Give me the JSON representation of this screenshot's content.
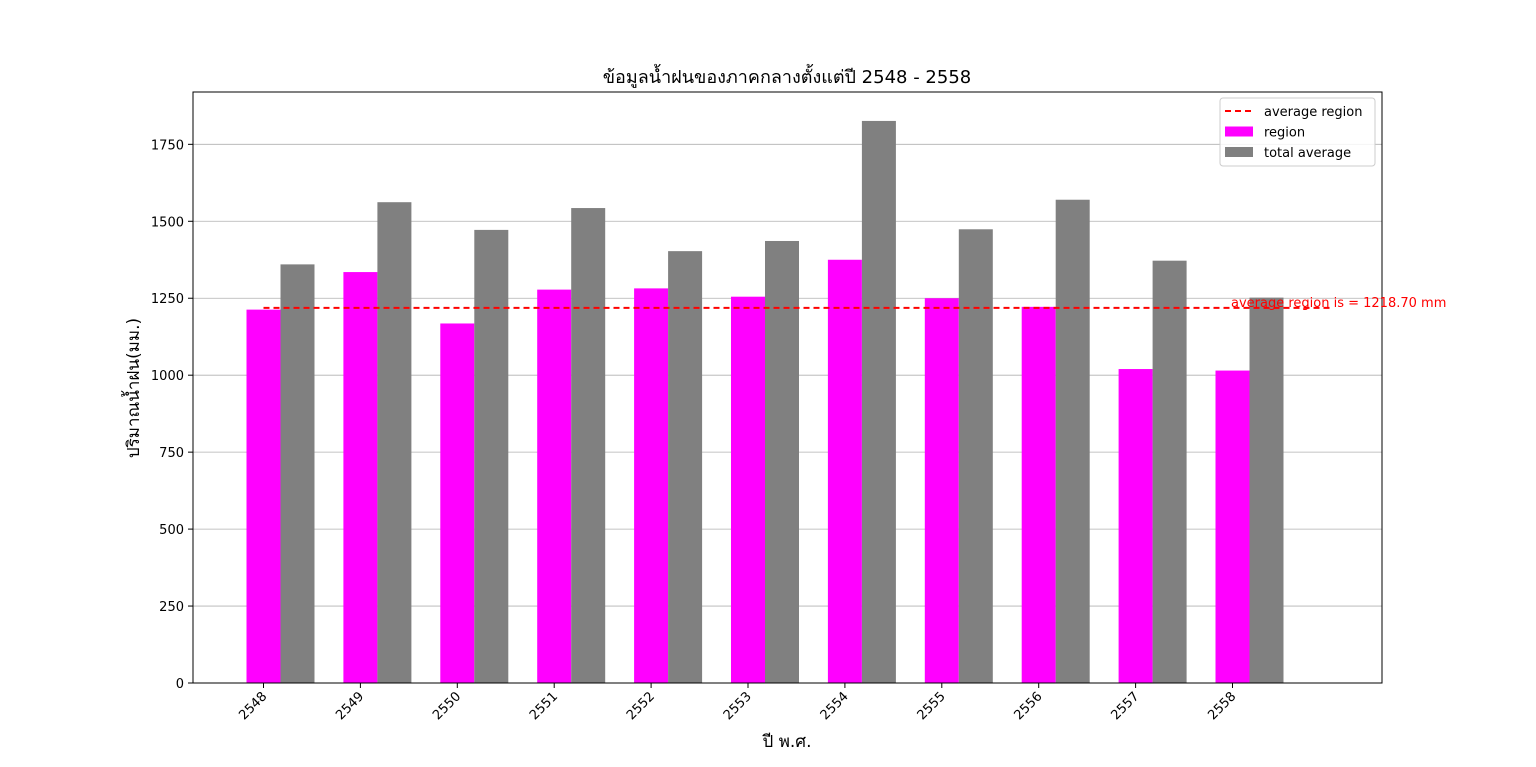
{
  "chart_data": {
    "type": "bar",
    "title": "ข้อมูลน้ำฝนของภาคกลางตั้งแต่ปี 2548 - 2558",
    "xlabel": "ปี พ.ศ.",
    "ylabel": "ปริมาณน้ำฝน(มม.)",
    "categories": [
      "2548",
      "2549",
      "2550",
      "2551",
      "2552",
      "2553",
      "2554",
      "2555",
      "2556",
      "2557",
      "2558"
    ],
    "series": [
      {
        "name": "region",
        "color": "#ff00ff",
        "values": [
          1213,
          1335,
          1168,
          1278,
          1282,
          1255,
          1375,
          1250,
          1222,
          1020,
          1015
        ]
      },
      {
        "name": "total average",
        "color": "#808080",
        "values": [
          1360,
          1562,
          1472,
          1543,
          1403,
          1436,
          1826,
          1474,
          1570,
          1372,
          1252
        ]
      }
    ],
    "reference_line": {
      "name": "average region",
      "value": 1218.7,
      "color": "#ff0000",
      "style": "dashed"
    },
    "annotation": "average region is = 1218.70 mm",
    "ylim": [
      0,
      1920
    ],
    "yticks": [
      0,
      250,
      500,
      750,
      1000,
      1250,
      1500,
      1750
    ],
    "grid": "horizontal",
    "legend_position": "top-right",
    "legend": [
      "average region",
      "region",
      "total average"
    ]
  }
}
